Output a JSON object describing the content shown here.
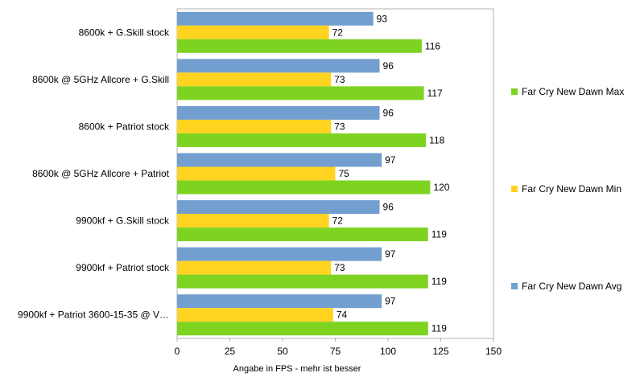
{
  "chart_data": {
    "type": "bar",
    "orientation": "horizontal",
    "categories": [
      "8600k + G.Skill stock",
      "8600k @ 5GHz Allcore + G.Skill",
      "8600k + Patriot stock",
      "8600k @ 5GHz Allcore + Patriot",
      "9900kf + G.Skill stock",
      "9900kf + Patriot stock",
      "9900kf + Patriot 3600-15-35 @ V…"
    ],
    "series": [
      {
        "name": "Far Cry New Dawn Avg",
        "color": "#729fcf",
        "values": [
          93,
          96,
          96,
          97,
          96,
          97,
          97
        ]
      },
      {
        "name": "Far Cry New Dawn Min",
        "color": "#ffd320",
        "values": [
          72,
          73,
          73,
          75,
          72,
          73,
          74
        ]
      },
      {
        "name": "Far Cry New Dawn Max",
        "color": "#7ed321",
        "values": [
          116,
          117,
          118,
          120,
          119,
          119,
          119
        ]
      }
    ],
    "legend_order": [
      "Far Cry New Dawn Max",
      "Far Cry New Dawn Min",
      "Far Cry New Dawn Avg"
    ],
    "xlabel": "Angabe in FPS - mehr ist besser",
    "xlim": [
      0,
      150
    ],
    "xticks": [
      0,
      25,
      50,
      75,
      100,
      125,
      150
    ],
    "grid": false,
    "legend": "right"
  }
}
